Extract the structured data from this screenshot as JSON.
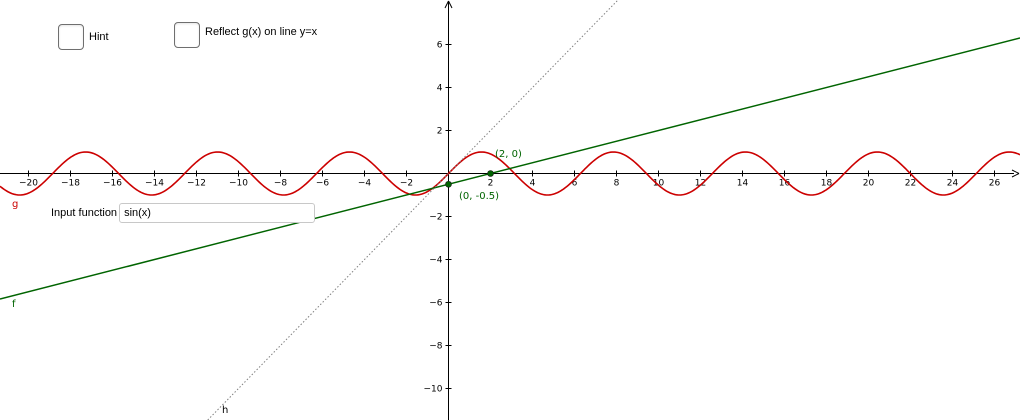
{
  "checkboxes": {
    "hint_label": "Hint",
    "reflect_label": "Reflect g(x) on line y=x"
  },
  "input": {
    "label": "Input function",
    "value": "sin(x)"
  },
  "curve_labels": {
    "g": "g",
    "f": "f",
    "h": "h"
  },
  "point_labels": {
    "p1": "(2, 0)",
    "p2": "(0, -0.5)"
  },
  "colors": {
    "g_curve": "#cc0000",
    "f_line": "#006400",
    "h_line": "#808080",
    "axis": "#000000",
    "points": "#006400"
  },
  "chart_data": {
    "type": "line",
    "xlim": [
      -21,
      26.8
    ],
    "ylim": [
      -11.5,
      8
    ],
    "x_ticks": [
      "-20",
      "-18",
      "-16",
      "-14",
      "-12",
      "-10",
      "-8",
      "-6",
      "-4",
      "-2",
      "2",
      "4",
      "6",
      "8",
      "10",
      "12",
      "14",
      "16",
      "18",
      "20",
      "22",
      "24",
      "26"
    ],
    "y_ticks": [
      "6",
      "4",
      "2",
      "-2",
      "-4",
      "-6",
      "-8",
      "-10"
    ],
    "grid": false,
    "series": [
      {
        "name": "g",
        "formula": "sin(x)",
        "color": "#cc0000"
      },
      {
        "name": "f",
        "formula": "0.25x - 0.5",
        "color": "#006400"
      },
      {
        "name": "h",
        "formula": "x",
        "color": "#808080",
        "style": "dotted"
      }
    ],
    "points": [
      {
        "x": 2,
        "y": 0,
        "label": "(2, 0)"
      },
      {
        "x": 0,
        "y": -0.5,
        "label": "(0, -0.5)"
      }
    ]
  }
}
